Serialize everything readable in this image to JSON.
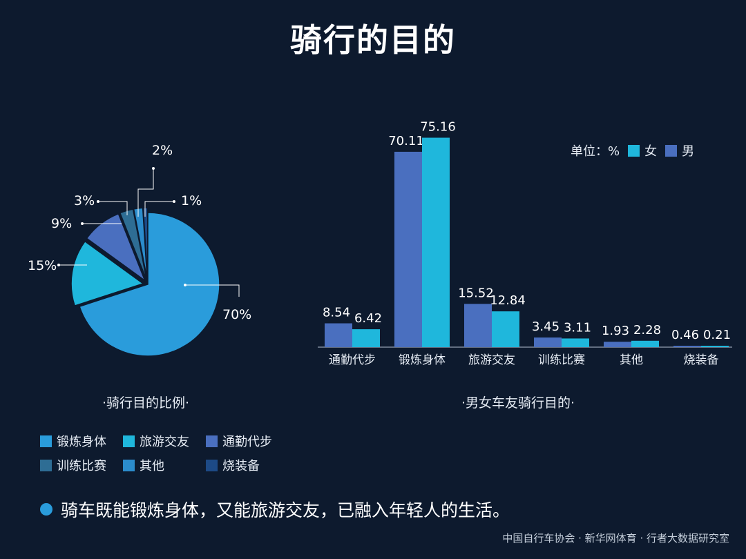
{
  "title": "骑行的目的",
  "colors": {
    "background": "#0d1a2e",
    "female": "#1fb7dc",
    "male": "#4a6fbf"
  },
  "chart_data": [
    {
      "type": "pie",
      "caption": "·骑行目的比例·",
      "slices": [
        {
          "label": "锻炼身体",
          "value": 70,
          "value_label": "70%",
          "color": "#2a9cdb"
        },
        {
          "label": "旅游交友",
          "value": 15,
          "value_label": "15%",
          "color": "#1fb7dc"
        },
        {
          "label": "通勤代步",
          "value": 9,
          "value_label": "9%",
          "color": "#4a6fbf"
        },
        {
          "label": "训练比赛",
          "value": 3,
          "value_label": "3%",
          "color": "#2e6d94"
        },
        {
          "label": "其他",
          "value": 2,
          "value_label": "2%",
          "color": "#2b8ccc"
        },
        {
          "label": "烧装备",
          "value": 1,
          "value_label": "1%",
          "color": "#1d4a86"
        }
      ]
    },
    {
      "type": "bar",
      "caption": "·男女车友骑行目的·",
      "unit_label": "单位：%",
      "categories": [
        "通勤代步",
        "锻炼身体",
        "旅游交友",
        "训练比赛",
        "其他",
        "烧装备"
      ],
      "series": [
        {
          "name": "男",
          "color": "#4a6fbf",
          "values": [
            8.54,
            70.11,
            15.52,
            3.45,
            1.93,
            0.46
          ],
          "labels": [
            "8.54",
            "70.11",
            "15.52",
            "3.45",
            "1.93",
            "0.46"
          ]
        },
        {
          "name": "女",
          "color": "#1fb7dc",
          "values": [
            6.42,
            75.16,
            12.84,
            3.11,
            2.28,
            0.21
          ],
          "labels": [
            "6.42",
            "75.16",
            "12.84",
            "3.11",
            "2.28",
            "0.21"
          ]
        }
      ],
      "legend_order": [
        "女",
        "男"
      ],
      "ylim": [
        0,
        80
      ]
    }
  ],
  "conclusion": "骑车既能锻炼身体，又能旅游交友，已融入年轻人的生活。",
  "source": "中国自行车协会 · 新华网体育 · 行者大数据研究室"
}
